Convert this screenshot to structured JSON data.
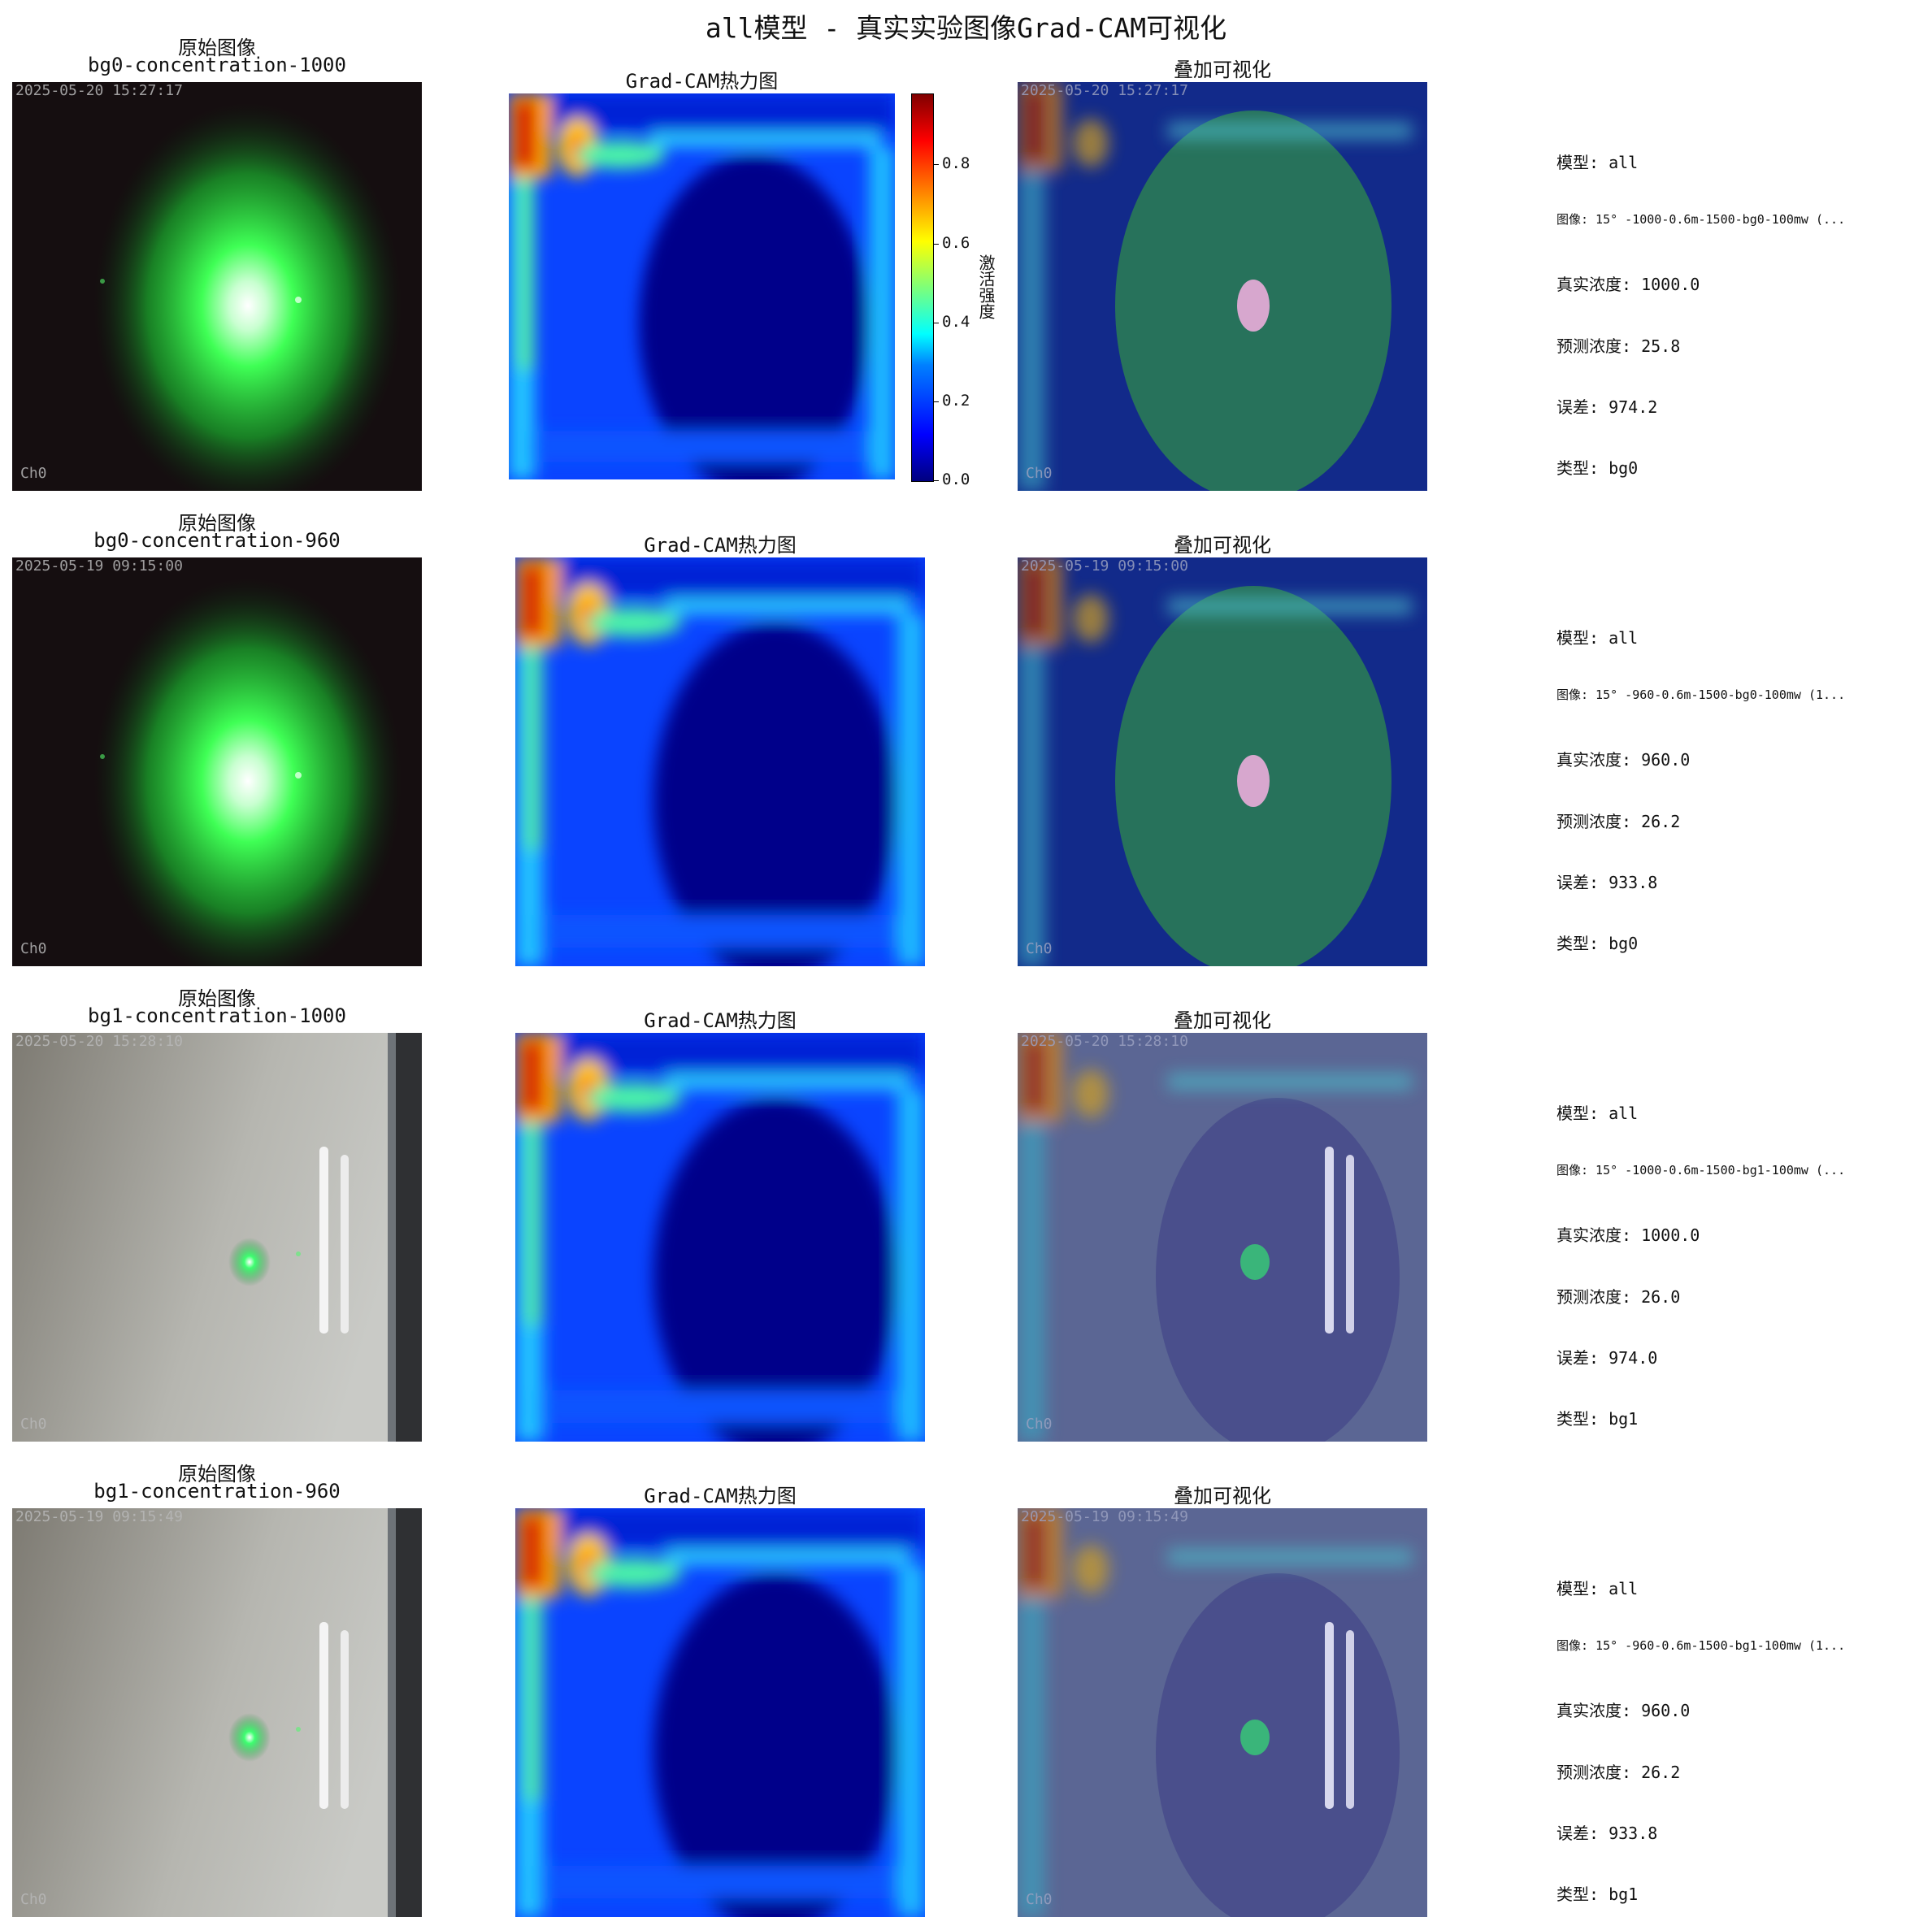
{
  "title": "all模型 - 真实实验图像Grad-CAM可视化",
  "colorbar": {
    "label": "激活强度",
    "ticks": [
      "0.0",
      "0.2",
      "0.4",
      "0.6",
      "0.8"
    ]
  },
  "rows": [
    {
      "orig_title": "原始图像",
      "orig_subtitle": "bg0-concentration-1000",
      "timestamp": "2025-05-20 15:27:17",
      "channel": "Ch0",
      "heatmap_title": "Grad-CAM热力图",
      "overlay_title": "叠加可视化",
      "info": {
        "model": "模型: all",
        "image": "图像: 15° -1000-0.6m-1500-bg0-100mw (...",
        "true_conc": "真实浓度: 1000.0",
        "pred_conc": "预测浓度: 25.8",
        "error": "误差: 974.2",
        "type": "类型: bg0"
      }
    },
    {
      "orig_title": "原始图像",
      "orig_subtitle": "bg0-concentration-960",
      "timestamp": "2025-05-19 09:15:00",
      "channel": "Ch0",
      "heatmap_title": "Grad-CAM热力图",
      "overlay_title": "叠加可视化",
      "info": {
        "model": "模型: all",
        "image": "图像: 15° -960-0.6m-1500-bg0-100mw (1...",
        "true_conc": "真实浓度: 960.0",
        "pred_conc": "预测浓度: 26.2",
        "error": "误差: 933.8",
        "type": "类型: bg0"
      }
    },
    {
      "orig_title": "原始图像",
      "orig_subtitle": "bg1-concentration-1000",
      "timestamp": "2025-05-20 15:28:10",
      "channel": "Ch0",
      "heatmap_title": "Grad-CAM热力图",
      "overlay_title": "叠加可视化",
      "info": {
        "model": "模型: all",
        "image": "图像: 15° -1000-0.6m-1500-bg1-100mw (...",
        "true_conc": "真实浓度: 1000.0",
        "pred_conc": "预测浓度: 26.0",
        "error": "误差: 974.0",
        "type": "类型: bg1"
      }
    },
    {
      "orig_title": "原始图像",
      "orig_subtitle": "bg1-concentration-960",
      "timestamp": "2025-05-19 09:15:49",
      "channel": "Ch0",
      "heatmap_title": "Grad-CAM热力图",
      "overlay_title": "叠加可视化",
      "info": {
        "model": "模型: all",
        "image": "图像: 15° -960-0.6m-1500-bg1-100mw (1...",
        "true_conc": "真实浓度: 960.0",
        "pred_conc": "预测浓度: 26.2",
        "error": "误差: 933.8",
        "type": "类型: bg1"
      }
    }
  ]
}
